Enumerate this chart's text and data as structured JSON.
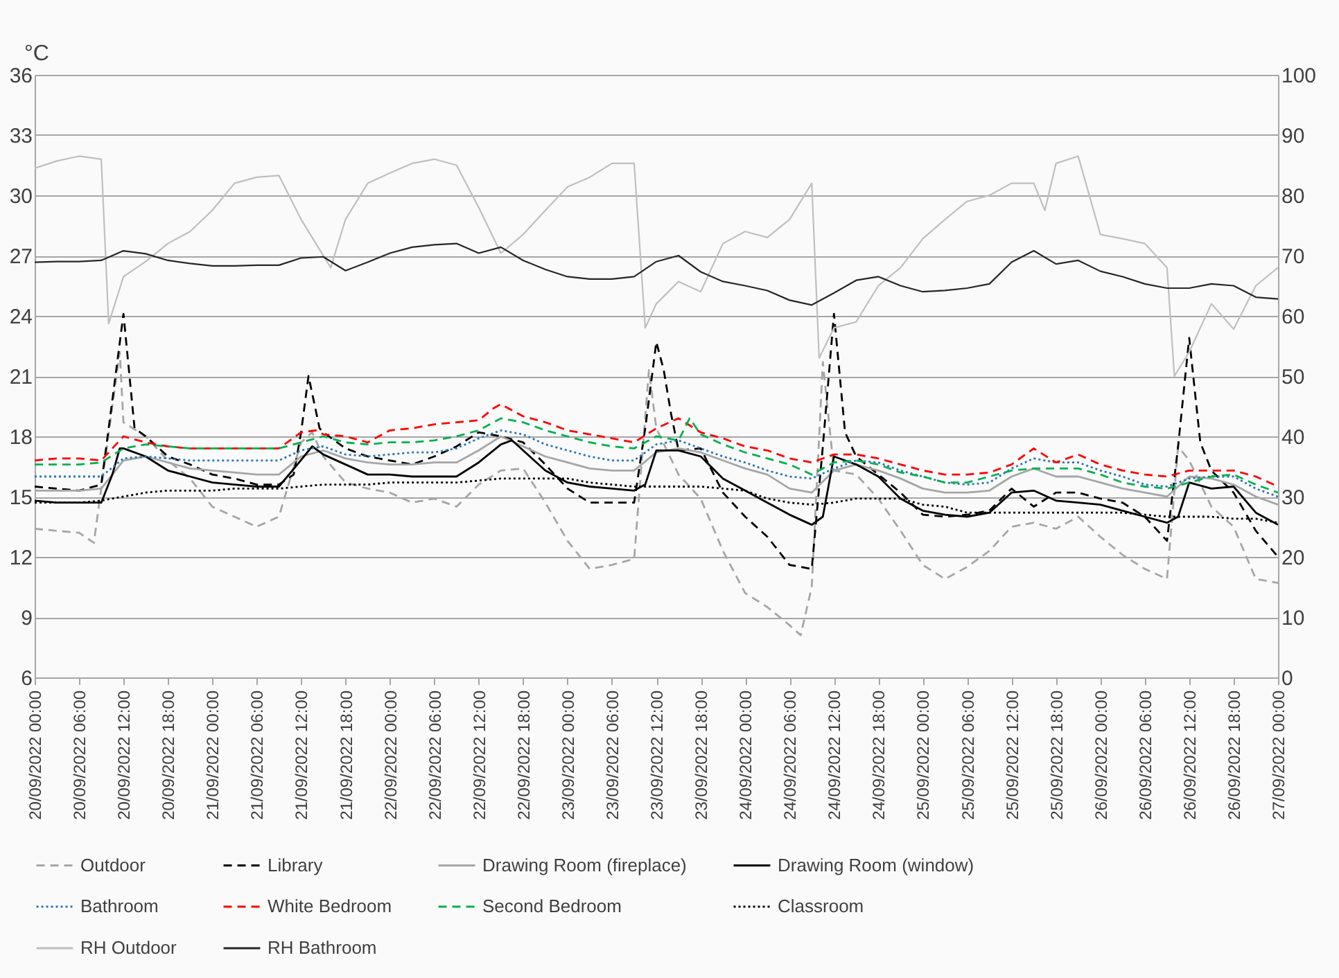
{
  "chart_data": {
    "type": "line",
    "ylabel": "°C",
    "legend": "bottom",
    "grid": "y",
    "xlim": [
      "2022-09-20T00:00",
      "2022-09-27T00:00"
    ],
    "xticks": [
      {
        "value": "2022-09-20T00:00",
        "label": "20/09/2022 00:00"
      },
      {
        "value": "2022-09-20T06:00",
        "label": "20/09/2022 06:00"
      },
      {
        "value": "2022-09-20T12:00",
        "label": "20/09/2022 12:00"
      },
      {
        "value": "2022-09-20T18:00",
        "label": "20/09/2022 18:00"
      },
      {
        "value": "2022-09-21T00:00",
        "label": "21/09/2022 00:00"
      },
      {
        "value": "2022-09-21T06:00",
        "label": "21/09/2022 06:00"
      },
      {
        "value": "2022-09-21T12:00",
        "label": "21/09/2022 12:00"
      },
      {
        "value": "2022-09-21T18:00",
        "label": "21/09/2022 18:00"
      },
      {
        "value": "2022-09-22T00:00",
        "label": "22/09/2022 00:00"
      },
      {
        "value": "2022-09-22T06:00",
        "label": "22/09/2022 06:00"
      },
      {
        "value": "2022-09-22T12:00",
        "label": "22/09/2022 12:00"
      },
      {
        "value": "2022-09-22T18:00",
        "label": "22/09/2022 18:00"
      },
      {
        "value": "2022-09-23T00:00",
        "label": "23/09/2022 00:00"
      },
      {
        "value": "2022-09-23T06:00",
        "label": "23/09/2022 06:00"
      },
      {
        "value": "2022-09-23T12:00",
        "label": "23/09/2022 12:00"
      },
      {
        "value": "2022-09-23T18:00",
        "label": "23/09/2022 18:00"
      },
      {
        "value": "2022-09-24T00:00",
        "label": "24/09/2022 00:00"
      },
      {
        "value": "2022-09-24T06:00",
        "label": "24/09/2022 06:00"
      },
      {
        "value": "2022-09-24T12:00",
        "label": "24/09/2022 12:00"
      },
      {
        "value": "2022-09-24T18:00",
        "label": "24/09/2022 18:00"
      },
      {
        "value": "2022-09-25T00:00",
        "label": "25/09/2022 00:00"
      },
      {
        "value": "2022-09-25T06:00",
        "label": "25/09/2022 06:00"
      },
      {
        "value": "2022-09-25T12:00",
        "label": "25/09/2022 12:00"
      },
      {
        "value": "2022-09-25T18:00",
        "label": "25/09/2022 18:00"
      },
      {
        "value": "2022-09-26T00:00",
        "label": "26/09/2022 00:00"
      },
      {
        "value": "2022-09-26T06:00",
        "label": "26/09/2022 06:00"
      },
      {
        "value": "2022-09-26T12:00",
        "label": "26/09/2022 12:00"
      },
      {
        "value": "2022-09-26T18:00",
        "label": "26/09/2022 18:00"
      },
      {
        "value": "2022-09-27T00:00",
        "label": "27/09/2022 00:00"
      }
    ],
    "ylim": [
      6,
      36
    ],
    "yticks": [
      6,
      9,
      12,
      15,
      18,
      21,
      24,
      27,
      30,
      33,
      36
    ],
    "y2lim": [
      0,
      100
    ],
    "y2ticks": [
      0,
      10,
      20,
      30,
      40,
      50,
      60,
      70,
      80,
      90,
      100
    ],
    "x": [
      "2022-09-20T00:00",
      "2022-09-20T03:00",
      "2022-09-20T06:00",
      "2022-09-20T09:00",
      "2022-09-20T12:00",
      "2022-09-20T15:00",
      "2022-09-20T18:00",
      "2022-09-20T21:00",
      "2022-09-21T00:00",
      "2022-09-21T03:00",
      "2022-09-21T06:00",
      "2022-09-21T09:00",
      "2022-09-21T12:00",
      "2022-09-21T15:00",
      "2022-09-21T18:00",
      "2022-09-21T21:00",
      "2022-09-22T00:00",
      "2022-09-22T03:00",
      "2022-09-22T06:00",
      "2022-09-22T09:00",
      "2022-09-22T12:00",
      "2022-09-22T15:00",
      "2022-09-22T18:00",
      "2022-09-22T21:00",
      "2022-09-23T00:00",
      "2022-09-23T03:00",
      "2022-09-23T06:00",
      "2022-09-23T09:00",
      "2022-09-23T12:00",
      "2022-09-23T15:00",
      "2022-09-23T18:00",
      "2022-09-23T21:00",
      "2022-09-24T00:00",
      "2022-09-24T03:00",
      "2022-09-24T06:00",
      "2022-09-24T09:00",
      "2022-09-24T12:00",
      "2022-09-24T15:00",
      "2022-09-24T18:00",
      "2022-09-24T21:00",
      "2022-09-25T00:00",
      "2022-09-25T03:00",
      "2022-09-25T06:00",
      "2022-09-25T09:00",
      "2022-09-25T12:00",
      "2022-09-25T15:00",
      "2022-09-25T18:00",
      "2022-09-25T21:00",
      "2022-09-26T00:00",
      "2022-09-26T03:00",
      "2022-09-26T06:00",
      "2022-09-26T09:00",
      "2022-09-26T12:00",
      "2022-09-26T15:00",
      "2022-09-26T18:00",
      "2022-09-26T21:00",
      "2022-09-27T00:00"
    ],
    "series": [
      {
        "name": "Outdoor",
        "color": "#a6a6a6",
        "line_style": "dashed",
        "x": [
          "2022-09-20T00:00",
          "2022-09-20T03:00",
          "2022-09-20T06:00",
          "2022-09-20T08:00",
          "2022-09-20T11:30",
          "2022-09-20T12:00",
          "2022-09-20T15:00",
          "2022-09-20T18:00",
          "2022-09-20T21:00",
          "2022-09-21T00:00",
          "2022-09-21T03:00",
          "2022-09-21T06:00",
          "2022-09-21T09:00",
          "2022-09-21T12:00",
          "2022-09-21T13:30",
          "2022-09-21T15:00",
          "2022-09-21T18:00",
          "2022-09-21T21:00",
          "2022-09-22T00:00",
          "2022-09-22T03:00",
          "2022-09-22T06:00",
          "2022-09-22T09:00",
          "2022-09-22T12:00",
          "2022-09-22T15:00",
          "2022-09-22T18:00",
          "2022-09-22T21:00",
          "2022-09-23T00:00",
          "2022-09-23T03:00",
          "2022-09-23T06:00",
          "2022-09-23T09:00",
          "2022-09-23T11:00",
          "2022-09-23T12:00",
          "2022-09-23T15:00",
          "2022-09-23T18:00",
          "2022-09-23T21:00",
          "2022-09-24T00:00",
          "2022-09-24T03:00",
          "2022-09-24T06:00",
          "2022-09-24T07:30",
          "2022-09-24T09:00",
          "2022-09-24T10:30",
          "2022-09-24T12:00",
          "2022-09-24T15:00",
          "2022-09-24T18:00",
          "2022-09-24T21:00",
          "2022-09-25T00:00",
          "2022-09-25T03:00",
          "2022-09-25T06:00",
          "2022-09-25T09:00",
          "2022-09-25T12:00",
          "2022-09-25T15:00",
          "2022-09-25T18:00",
          "2022-09-25T21:00",
          "2022-09-26T00:00",
          "2022-09-26T03:00",
          "2022-09-26T06:00",
          "2022-09-26T09:00",
          "2022-09-26T10:30",
          "2022-09-26T12:00",
          "2022-09-26T15:00",
          "2022-09-26T18:00",
          "2022-09-26T21:00",
          "2022-09-27T00:00"
        ],
        "values": [
          13.4,
          13.3,
          13.2,
          12.7,
          22.2,
          18.7,
          18,
          16.8,
          15.9,
          14.5,
          14,
          13.5,
          14,
          17.7,
          18.2,
          17,
          15.7,
          15.4,
          15.2,
          14.7,
          14.9,
          14.5,
          15.6,
          16.3,
          16.4,
          14.7,
          12.8,
          11.4,
          11.6,
          11.9,
          21.3,
          18.4,
          16.1,
          14.9,
          12.3,
          10.2,
          9.5,
          8.6,
          8.1,
          10.5,
          21.7,
          16.3,
          16.1,
          14.9,
          13.3,
          11.6,
          10.9,
          11.5,
          12.3,
          13.5,
          13.7,
          13.4,
          14,
          13,
          12.1,
          11.4,
          10.9,
          17.5,
          16.8,
          14.5,
          13.5,
          10.9,
          10.7
        ]
      },
      {
        "name": "Library",
        "color": "#000000",
        "line_style": "dashed",
        "x": [
          "2022-09-20T00:00",
          "2022-09-20T03:00",
          "2022-09-20T06:00",
          "2022-09-20T09:00",
          "2022-09-20T10:30",
          "2022-09-20T12:00",
          "2022-09-20T13:30",
          "2022-09-20T15:00",
          "2022-09-20T18:00",
          "2022-09-20T21:00",
          "2022-09-21T00:00",
          "2022-09-21T03:00",
          "2022-09-21T06:00",
          "2022-09-21T09:00",
          "2022-09-21T11:00",
          "2022-09-21T12:00",
          "2022-09-21T13:00",
          "2022-09-21T14:30",
          "2022-09-21T15:00",
          "2022-09-21T18:00",
          "2022-09-21T21:00",
          "2022-09-22T00:00",
          "2022-09-22T03:00",
          "2022-09-22T06:00",
          "2022-09-22T09:00",
          "2022-09-22T12:00",
          "2022-09-22T15:00",
          "2022-09-22T18:00",
          "2022-09-22T21:00",
          "2022-09-23T00:00",
          "2022-09-23T03:00",
          "2022-09-23T06:00",
          "2022-09-23T09:00",
          "2022-09-23T10:30",
          "2022-09-23T12:00",
          "2022-09-23T13:00",
          "2022-09-23T14:00",
          "2022-09-23T15:00",
          "2022-09-23T18:00",
          "2022-09-23T21:00",
          "2022-09-24T00:00",
          "2022-09-24T03:00",
          "2022-09-24T06:00",
          "2022-09-24T09:00",
          "2022-09-24T10:30",
          "2022-09-24T12:00",
          "2022-09-24T13:30",
          "2022-09-24T15:00",
          "2022-09-24T18:00",
          "2022-09-24T21:00",
          "2022-09-25T00:00",
          "2022-09-25T03:00",
          "2022-09-25T06:00",
          "2022-09-25T09:00",
          "2022-09-25T12:00",
          "2022-09-25T15:00",
          "2022-09-25T18:00",
          "2022-09-25T21:00",
          "2022-09-26T00:00",
          "2022-09-26T03:00",
          "2022-09-26T06:00",
          "2022-09-26T09:00",
          "2022-09-26T10:30",
          "2022-09-26T12:00",
          "2022-09-26T13:30",
          "2022-09-26T15:00",
          "2022-09-26T18:00",
          "2022-09-26T21:00",
          "2022-09-27T00:00"
        ],
        "values": [
          15.5,
          15.4,
          15.3,
          15.6,
          19.8,
          24.1,
          18.4,
          18,
          17,
          16.6,
          16.1,
          15.9,
          15.6,
          15.6,
          16.1,
          18.2,
          21,
          18.4,
          18.2,
          17.4,
          17,
          16.8,
          16.6,
          17,
          17.5,
          18.2,
          18,
          17.7,
          16.6,
          15.4,
          14.7,
          14.7,
          14.7,
          18.4,
          22.7,
          21.3,
          19.1,
          17.3,
          17.4,
          15.2,
          14,
          13,
          11.6,
          11.4,
          17.5,
          24.1,
          18.2,
          17,
          16.1,
          15.2,
          14.1,
          14,
          14.1,
          14.3,
          15.4,
          14.5,
          15.2,
          15.2,
          14.9,
          14.7,
          14,
          12.8,
          17.5,
          22.9,
          17.7,
          16.3,
          15.2,
          13.3,
          12
        ]
      },
      {
        "name": "Drawing Room (fireplace)",
        "color": "#a6a6a6",
        "line_style": "solid",
        "values": [
          15.3,
          15.3,
          15.3,
          15.4,
          16.8,
          17,
          16.7,
          16.4,
          16.3,
          16.2,
          16.1,
          16.1,
          17,
          17.3,
          16.9,
          16.7,
          16.6,
          16.6,
          16.7,
          16.7,
          17.3,
          18,
          17.5,
          17,
          16.7,
          16.4,
          16.3,
          16.3,
          17.2,
          17.4,
          17.2,
          16.8,
          16.4,
          16.1,
          15.4,
          15.2,
          16.3,
          16.6,
          16.3,
          15.9,
          15.4,
          15.2,
          15.2,
          15.3,
          16,
          16.4,
          16,
          16,
          15.7,
          15.4,
          15.2,
          15,
          16,
          15.9,
          15.6,
          15,
          14.6
        ]
      },
      {
        "name": "Drawing Room (window)",
        "color": "#000000",
        "line_style": "solid",
        "x": [
          "2022-09-20T00:00",
          "2022-09-20T03:00",
          "2022-09-20T06:00",
          "2022-09-20T09:00",
          "2022-09-20T10:30",
          "2022-09-20T11:30",
          "2022-09-20T12:00",
          "2022-09-20T15:00",
          "2022-09-20T18:00",
          "2022-09-20T21:00",
          "2022-09-21T00:00",
          "2022-09-21T03:00",
          "2022-09-21T06:00",
          "2022-09-21T09:00",
          "2022-09-21T11:30",
          "2022-09-21T13:30",
          "2022-09-21T15:00",
          "2022-09-21T18:00",
          "2022-09-21T21:00",
          "2022-09-22T00:00",
          "2022-09-22T03:00",
          "2022-09-22T06:00",
          "2022-09-22T09:00",
          "2022-09-22T12:00",
          "2022-09-22T15:00",
          "2022-09-22T16:30",
          "2022-09-22T18:00",
          "2022-09-22T21:00",
          "2022-09-23T00:00",
          "2022-09-23T03:00",
          "2022-09-23T06:00",
          "2022-09-23T09:00",
          "2022-09-23T10:30",
          "2022-09-23T12:00",
          "2022-09-23T15:00",
          "2022-09-23T18:00",
          "2022-09-23T21:00",
          "2022-09-24T00:00",
          "2022-09-24T03:00",
          "2022-09-24T06:00",
          "2022-09-24T09:00",
          "2022-09-24T10:30",
          "2022-09-24T12:00",
          "2022-09-24T15:00",
          "2022-09-24T18:00",
          "2022-09-24T21:00",
          "2022-09-25T00:00",
          "2022-09-25T03:00",
          "2022-09-25T06:00",
          "2022-09-25T09:00",
          "2022-09-25T12:00",
          "2022-09-25T15:00",
          "2022-09-25T18:00",
          "2022-09-25T21:00",
          "2022-09-26T00:00",
          "2022-09-26T03:00",
          "2022-09-26T06:00",
          "2022-09-26T09:00",
          "2022-09-26T10:30",
          "2022-09-26T12:00",
          "2022-09-26T15:00",
          "2022-09-26T18:00",
          "2022-09-26T21:00",
          "2022-09-27T00:00"
        ],
        "values": [
          14.8,
          14.7,
          14.7,
          14.7,
          16.1,
          17.4,
          17.4,
          17,
          16.3,
          16,
          15.7,
          15.6,
          15.5,
          15.5,
          16.6,
          17.5,
          17.1,
          16.6,
          16.1,
          16.1,
          16,
          16,
          16,
          16.7,
          17.6,
          17.8,
          17.3,
          16.3,
          15.7,
          15.5,
          15.4,
          15.3,
          15.6,
          17.3,
          17.3,
          17,
          15.9,
          15.3,
          14.7,
          14.1,
          13.6,
          14,
          17,
          16.6,
          16,
          14.9,
          14.3,
          14.1,
          14,
          14.2,
          15.2,
          15.3,
          14.8,
          14.7,
          14.6,
          14.3,
          14,
          13.7,
          14,
          15.7,
          15.4,
          15.5,
          14.2,
          13.6
        ]
      },
      {
        "name": "Bathroom",
        "color": "#2e75b6",
        "line_style": "dotted",
        "values": [
          16,
          16,
          16,
          16,
          16.9,
          17,
          16.9,
          16.8,
          16.8,
          16.8,
          16.8,
          16.8,
          17.3,
          17.5,
          17.1,
          17,
          17.1,
          17.2,
          17.2,
          17.4,
          17.9,
          18.3,
          18.1,
          17.6,
          17.3,
          17,
          16.8,
          16.8,
          17.6,
          17.8,
          17.4,
          17,
          16.7,
          16.3,
          16,
          15.9,
          16.4,
          16.8,
          16.7,
          16.3,
          16,
          15.7,
          15.6,
          15.7,
          16.4,
          16.9,
          16.7,
          16.7,
          16.3,
          16,
          15.6,
          15.5,
          15.9,
          16,
          16,
          15.4,
          15
        ]
      },
      {
        "name": "White Bedroom",
        "color": "#ff0000",
        "line_style": "dashed",
        "x": [
          "2022-09-20T00:00",
          "2022-09-20T03:00",
          "2022-09-20T06:00",
          "2022-09-20T09:00",
          "2022-09-20T12:00",
          "2022-09-20T15:00",
          "2022-09-20T18:00",
          "2022-09-20T21:00",
          "2022-09-21T00:00",
          "2022-09-21T03:00",
          "2022-09-21T06:00",
          "2022-09-21T09:00",
          "2022-09-21T12:00",
          "2022-09-21T14:00",
          "2022-09-21T15:00",
          "2022-09-21T18:00",
          "2022-09-21T21:00",
          "2022-09-21T22:30",
          "2022-09-22T00:00",
          "2022-09-22T03:00",
          "2022-09-22T06:00",
          "2022-09-22T09:00",
          "2022-09-22T12:00",
          "2022-09-22T14:00",
          "2022-09-22T15:00",
          "2022-09-22T18:00",
          "2022-09-22T21:00",
          "2022-09-23T00:00",
          "2022-09-23T03:00",
          "2022-09-23T06:00",
          "2022-09-23T09:00",
          "2022-09-23T12:00",
          "2022-09-23T15:00",
          "2022-09-23T18:00",
          "2022-09-23T21:00",
          "2022-09-24T00:00",
          "2022-09-24T03:00",
          "2022-09-24T06:00",
          "2022-09-24T09:00",
          "2022-09-24T12:00",
          "2022-09-24T15:00",
          "2022-09-24T18:00",
          "2022-09-24T21:00",
          "2022-09-25T00:00",
          "2022-09-25T03:00",
          "2022-09-25T06:00",
          "2022-09-25T09:00",
          "2022-09-25T12:00",
          "2022-09-25T15:00",
          "2022-09-25T18:00",
          "2022-09-25T21:00",
          "2022-09-26T00:00",
          "2022-09-26T03:00",
          "2022-09-26T06:00",
          "2022-09-26T09:00",
          "2022-09-26T12:00",
          "2022-09-26T15:00",
          "2022-09-26T18:00",
          "2022-09-26T21:00",
          "2022-09-27T00:00"
        ],
        "values": [
          16.8,
          16.9,
          16.9,
          16.8,
          18,
          17.7,
          17.5,
          17.4,
          17.4,
          17.4,
          17.4,
          17.4,
          18.2,
          18.3,
          18.1,
          18,
          17.7,
          18,
          18.3,
          18.4,
          18.6,
          18.7,
          18.8,
          19.4,
          19.6,
          19,
          18.7,
          18.3,
          18.1,
          17.9,
          17.7,
          18.4,
          18.9,
          18.2,
          17.9,
          17.5,
          17.3,
          16.9,
          16.7,
          17.1,
          17.1,
          16.9,
          16.6,
          16.3,
          16.1,
          16.1,
          16.2,
          16.6,
          17.4,
          16.7,
          17.1,
          16.6,
          16.3,
          16.1,
          16,
          16.3,
          16.3,
          16.3,
          16,
          15.5
        ]
      },
      {
        "name": "Second Bedroom",
        "color": "#00b050",
        "line_style": "dashed",
        "x": [
          "2022-09-20T00:00",
          "2022-09-20T03:00",
          "2022-09-20T06:00",
          "2022-09-20T09:00",
          "2022-09-20T12:00",
          "2022-09-20T15:00",
          "2022-09-20T18:00",
          "2022-09-20T21:00",
          "2022-09-21T00:00",
          "2022-09-21T03:00",
          "2022-09-21T06:00",
          "2022-09-21T09:00",
          "2022-09-21T12:00",
          "2022-09-21T15:00",
          "2022-09-21T18:00",
          "2022-09-21T21:00",
          "2022-09-22T00:00",
          "2022-09-22T03:00",
          "2022-09-22T06:00",
          "2022-09-22T09:00",
          "2022-09-22T12:00",
          "2022-09-22T15:00",
          "2022-09-22T18:00",
          "2022-09-22T21:00",
          "2022-09-23T00:00",
          "2022-09-23T03:00",
          "2022-09-23T06:00",
          "2022-09-23T09:00",
          "2022-09-23T12:00",
          "2022-09-23T15:00",
          "2022-09-23T16:30",
          "2022-09-23T18:00",
          "2022-09-23T21:00",
          "2022-09-24T00:00",
          "2022-09-24T03:00",
          "2022-09-24T06:00",
          "2022-09-24T09:00",
          "2022-09-24T12:00",
          "2022-09-24T15:00",
          "2022-09-24T18:00",
          "2022-09-24T21:00",
          "2022-09-25T00:00",
          "2022-09-25T03:00",
          "2022-09-25T06:00",
          "2022-09-25T09:00",
          "2022-09-25T12:00",
          "2022-09-25T15:00",
          "2022-09-25T18:00",
          "2022-09-25T21:00",
          "2022-09-26T00:00",
          "2022-09-26T03:00",
          "2022-09-26T06:00",
          "2022-09-26T09:00",
          "2022-09-26T12:00",
          "2022-09-26T15:00",
          "2022-09-26T18:00",
          "2022-09-26T21:00",
          "2022-09-27T00:00"
        ],
        "values": [
          16.6,
          16.6,
          16.6,
          16.7,
          17.4,
          17.6,
          17.5,
          17.4,
          17.4,
          17.4,
          17.4,
          17.4,
          17.7,
          18,
          17.7,
          17.6,
          17.7,
          17.7,
          17.8,
          18,
          18.3,
          18.9,
          18.7,
          18.3,
          18,
          17.7,
          17.5,
          17.4,
          18,
          17.8,
          18.9,
          18.1,
          17.6,
          17.2,
          16.9,
          16.6,
          16.1,
          16.7,
          16.8,
          16.6,
          16.2,
          16,
          15.7,
          15.7,
          16,
          16.3,
          16.4,
          16.4,
          16.4,
          16.1,
          15.7,
          15.5,
          15.4,
          15.7,
          16,
          16.1,
          15.6,
          15.2
        ]
      },
      {
        "name": "Classroom",
        "color": "#000000",
        "line_style": "dotted",
        "values": [
          14.7,
          14.7,
          14.7,
          14.8,
          15,
          15.2,
          15.3,
          15.3,
          15.3,
          15.4,
          15.4,
          15.4,
          15.5,
          15.6,
          15.6,
          15.6,
          15.7,
          15.7,
          15.7,
          15.7,
          15.8,
          15.9,
          15.9,
          15.9,
          15.9,
          15.7,
          15.6,
          15.5,
          15.5,
          15.5,
          15.5,
          15.4,
          15.3,
          14.9,
          14.7,
          14.6,
          14.7,
          14.9,
          14.9,
          14.9,
          14.6,
          14.5,
          14.2,
          14.2,
          14.2,
          14.2,
          14.2,
          14.2,
          14.2,
          14.2,
          14.1,
          14,
          14,
          14,
          13.9,
          13.9,
          13.7
        ]
      },
      {
        "name": "RH Outdoor",
        "color": "#bfbfbf",
        "line_style": "solid",
        "axis": "y2",
        "x": [
          "2022-09-20T00:00",
          "2022-09-20T03:00",
          "2022-09-20T06:00",
          "2022-09-20T09:00",
          "2022-09-20T10:00",
          "2022-09-20T12:00",
          "2022-09-20T15:00",
          "2022-09-20T18:00",
          "2022-09-20T21:00",
          "2022-09-21T00:00",
          "2022-09-21T03:00",
          "2022-09-21T06:00",
          "2022-09-21T09:00",
          "2022-09-21T12:00",
          "2022-09-21T16:00",
          "2022-09-21T18:00",
          "2022-09-21T21:00",
          "2022-09-22T00:00",
          "2022-09-22T03:00",
          "2022-09-22T06:00",
          "2022-09-22T09:00",
          "2022-09-22T12:00",
          "2022-09-22T15:00",
          "2022-09-22T18:00",
          "2022-09-22T21:00",
          "2022-09-23T00:00",
          "2022-09-23T03:00",
          "2022-09-23T06:00",
          "2022-09-23T09:00",
          "2022-09-23T10:30",
          "2022-09-23T12:00",
          "2022-09-23T15:00",
          "2022-09-23T18:00",
          "2022-09-23T21:00",
          "2022-09-24T00:00",
          "2022-09-24T03:00",
          "2022-09-24T06:00",
          "2022-09-24T09:00",
          "2022-09-24T10:00",
          "2022-09-24T12:00",
          "2022-09-24T15:00",
          "2022-09-24T18:00",
          "2022-09-24T21:00",
          "2022-09-25T00:00",
          "2022-09-25T03:00",
          "2022-09-25T06:00",
          "2022-09-25T09:00",
          "2022-09-25T12:00",
          "2022-09-25T15:00",
          "2022-09-25T16:30",
          "2022-09-25T18:00",
          "2022-09-25T21:00",
          "2022-09-26T00:00",
          "2022-09-26T03:00",
          "2022-09-26T06:00",
          "2022-09-26T09:00",
          "2022-09-26T10:00",
          "2022-09-26T12:00",
          "2022-09-26T15:00",
          "2022-09-26T18:00",
          "2022-09-26T21:00",
          "2022-09-27T00:00"
        ],
        "values": [
          84.5,
          85.7,
          86.5,
          86,
          58.7,
          66.5,
          69,
          72,
          74,
          77.5,
          82,
          83,
          83.3,
          76,
          68,
          76,
          82,
          83.7,
          85.3,
          86,
          85,
          78,
          70.4,
          73.5,
          77.5,
          81.4,
          83,
          85.3,
          85.3,
          58,
          62,
          65.7,
          64,
          72,
          74,
          73,
          76,
          82,
          53,
          58,
          59,
          65,
          68,
          72.8,
          76,
          79,
          80,
          82,
          82,
          77.5,
          85.3,
          86.5,
          73.5,
          72.8,
          72,
          68,
          50,
          54,
          62,
          57.8,
          65,
          68
        ]
      },
      {
        "name": "RH Bathroom",
        "color": "#262626",
        "line_style": "solid",
        "axis": "y2",
        "values": [
          68.9,
          69,
          69,
          69.2,
          70.8,
          70.3,
          69.2,
          68.7,
          68.3,
          68.3,
          68.4,
          68.4,
          69.6,
          69.8,
          67.5,
          68.9,
          70.4,
          71.4,
          71.8,
          72,
          70.4,
          71.4,
          69.2,
          67.7,
          66.5,
          66.1,
          66.1,
          66.5,
          69,
          70,
          67.3,
          65.7,
          65,
          64.2,
          62.6,
          61.8,
          63.8,
          65.9,
          66.5,
          65,
          64,
          64.2,
          64.6,
          65.3,
          68.9,
          70.8,
          68.6,
          69.2,
          67.4,
          66.5,
          65.3,
          64.6,
          64.6,
          65.3,
          65,
          63.1,
          62.8
        ]
      }
    ]
  }
}
